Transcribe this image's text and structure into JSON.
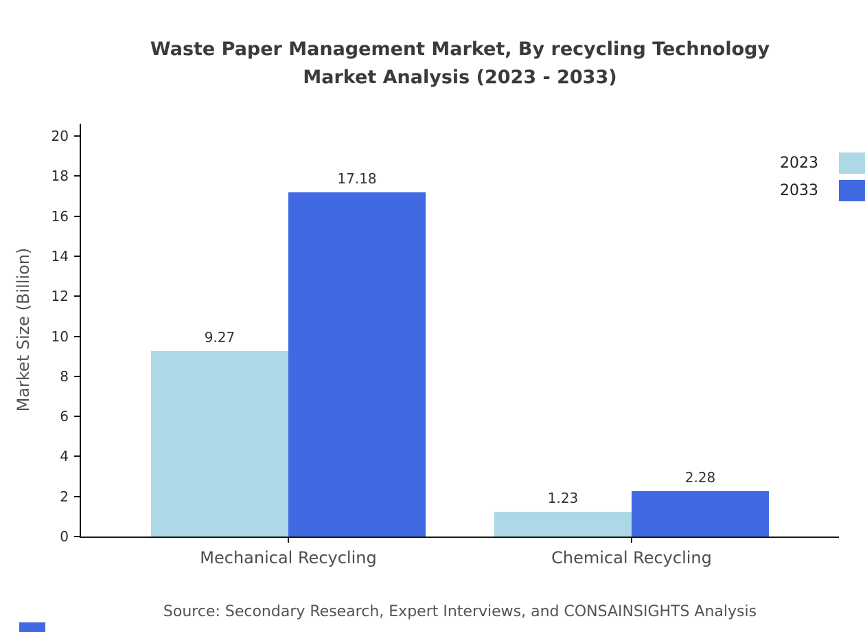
{
  "title": {
    "line1": "Waste Paper Management Market, By recycling Technology",
    "line2": "Market Analysis (2023 - 2033)"
  },
  "chart_data": {
    "type": "bar",
    "categories": [
      "Mechanical Recycling",
      "Chemical Recycling"
    ],
    "series": [
      {
        "name": "2023",
        "color": "#ADD8E6",
        "values": [
          9.27,
          1.23
        ]
      },
      {
        "name": "2033",
        "color": "#4169E1",
        "values": [
          17.18,
          2.28
        ]
      }
    ],
    "title": "Waste Paper Management Market, By recycling Technology Market Analysis (2023 - 2033)",
    "xlabel": "",
    "ylabel": "Market Size (Billion)",
    "ylim": [
      0,
      20
    ],
    "ytick_step": 2,
    "grid": false,
    "legend_position": "top-right",
    "value_labels": [
      "9.27",
      "17.18",
      "1.23",
      "2.28"
    ]
  },
  "source": "Source: Secondary Research, Expert Interviews, and CONSAINSIGHTS Analysis",
  "colors": {
    "series_2023": "#ADD8E6",
    "series_2033": "#4169E1",
    "axis": "#151515",
    "text_muted": "#555555"
  }
}
